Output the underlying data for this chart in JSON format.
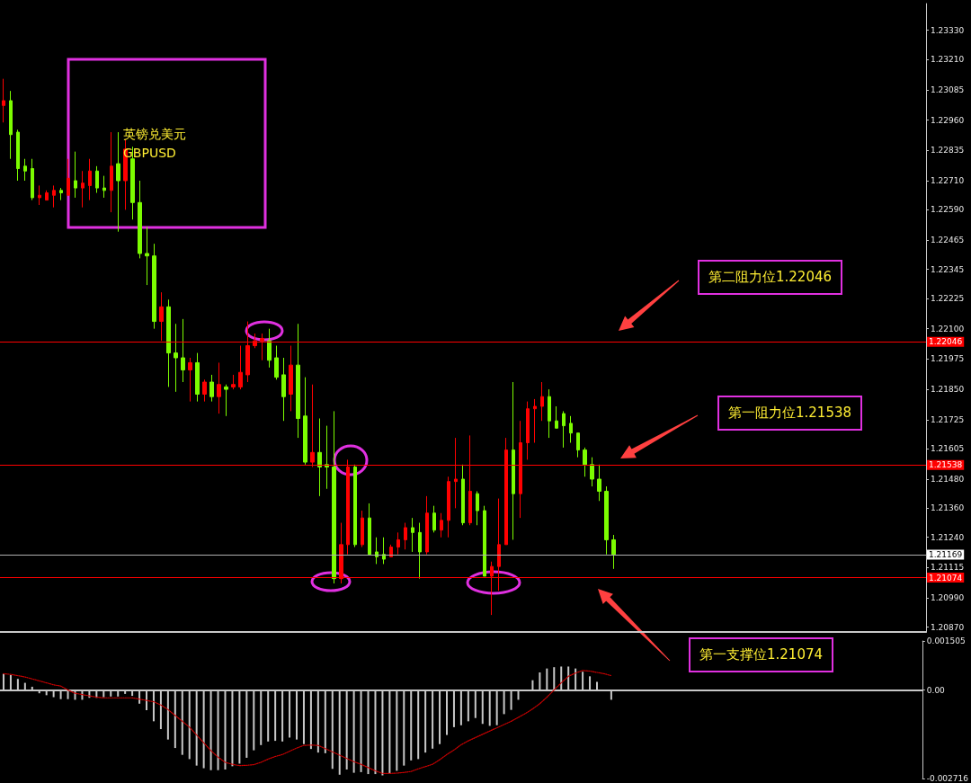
{
  "chart_data": [
    {
      "type": "candlestick",
      "title": "英镑兑美元",
      "subtitle": "GBPUSD",
      "categories": [
        null,
        null,
        null,
        null,
        null,
        null,
        null,
        null,
        null,
        null,
        null,
        null,
        null,
        null,
        null,
        null,
        null,
        null,
        null,
        null,
        null,
        null,
        null,
        null,
        null,
        null,
        null,
        null,
        null,
        null,
        null,
        null,
        null,
        null,
        null,
        null,
        null,
        null,
        null,
        null,
        null,
        null,
        null,
        null,
        null,
        null,
        null,
        null,
        null,
        null,
        null,
        null,
        null,
        null,
        null,
        null,
        null,
        null,
        null,
        null,
        null,
        null,
        null,
        null,
        null,
        null,
        null,
        null,
        null,
        null,
        null,
        null,
        null,
        null,
        null,
        null,
        null,
        null,
        null,
        null,
        null,
        null,
        null,
        null,
        null,
        null,
        null,
        null,
        null,
        null,
        null,
        null,
        null,
        null,
        null,
        null,
        null,
        null,
        null,
        null,
        null,
        null,
        null,
        null,
        null,
        null,
        null,
        null,
        null,
        null,
        null,
        null,
        null,
        null,
        null,
        null,
        null,
        null,
        null,
        null,
        null,
        null,
        null,
        null,
        null,
        null,
        null,
        null,
        null
      ],
      "ohlc": [
        [
          1.2302,
          1.2313,
          1.2295,
          1.2304
        ],
        [
          1.2304,
          1.2308,
          1.228,
          1.229
        ],
        [
          1.2291,
          1.2292,
          1.2271,
          1.2276
        ],
        [
          1.2277,
          1.228,
          1.2271,
          1.2275
        ],
        [
          1.2276,
          1.228,
          1.2263,
          1.2264
        ],
        [
          1.2264,
          1.2269,
          1.2261,
          1.2265
        ],
        [
          1.2263,
          1.2267,
          1.2263,
          1.2266
        ],
        [
          1.2265,
          1.2269,
          1.226,
          1.2267
        ],
        [
          1.2267,
          1.2268,
          1.2263,
          1.2266
        ],
        [
          1.2265,
          1.228,
          1.2265,
          1.2272
        ],
        [
          1.2271,
          1.2283,
          1.2264,
          1.2268
        ],
        [
          1.2268,
          1.2275,
          1.226,
          1.227
        ],
        [
          1.2269,
          1.228,
          1.2263,
          1.2275
        ],
        [
          1.2275,
          1.2277,
          1.2266,
          1.2268
        ],
        [
          1.2268,
          1.2273,
          1.2264,
          1.2267
        ],
        [
          1.2267,
          1.2291,
          1.2258,
          1.2277
        ],
        [
          1.2278,
          1.2291,
          1.225,
          1.2271
        ],
        [
          1.2271,
          1.2288,
          1.2259,
          1.2284
        ],
        [
          1.228,
          1.2285,
          1.2255,
          1.2262
        ],
        [
          1.2262,
          1.2271,
          1.2239,
          1.2241
        ],
        [
          1.2241,
          1.2252,
          1.2228,
          1.224
        ],
        [
          1.224,
          1.2245,
          1.221,
          1.2213
        ],
        [
          1.2213,
          1.2225,
          1.2205,
          1.2219
        ],
        [
          1.2219,
          1.2222,
          1.2186,
          1.22
        ],
        [
          1.22,
          1.2212,
          1.2184,
          1.2198
        ],
        [
          1.2198,
          1.2214,
          1.2188,
          1.2193
        ],
        [
          1.2193,
          1.2198,
          1.218,
          1.2196
        ],
        [
          1.2196,
          1.22,
          1.218,
          1.2183
        ],
        [
          1.2183,
          1.2189,
          1.218,
          1.2188
        ],
        [
          1.2188,
          1.2191,
          1.218,
          1.2182
        ],
        [
          1.2182,
          1.2196,
          1.2175,
          1.2187
        ],
        [
          1.2186,
          1.2187,
          1.2174,
          1.2185
        ],
        [
          1.2186,
          1.2191,
          1.2185,
          1.2187
        ],
        [
          1.2186,
          1.2203,
          1.2185,
          1.2192
        ],
        [
          1.2191,
          1.2213,
          1.2188,
          1.2203
        ],
        [
          1.2203,
          1.2208,
          1.2202,
          1.2205
        ],
        [
          1.2205,
          1.2208,
          1.2197,
          1.2206
        ],
        [
          1.2205,
          1.221,
          1.2194,
          1.2197
        ],
        [
          1.2198,
          1.2203,
          1.2189,
          1.219
        ],
        [
          1.2191,
          1.2198,
          1.2172,
          1.2182
        ],
        [
          1.2183,
          1.2203,
          1.2176,
          1.2195
        ],
        [
          1.2195,
          1.2212,
          1.2165,
          1.2173
        ],
        [
          1.2174,
          1.219,
          1.2154,
          1.2155
        ],
        [
          1.2155,
          1.2187,
          1.2153,
          1.2159
        ],
        [
          1.2159,
          1.2173,
          1.2141,
          1.2153
        ],
        [
          1.2154,
          1.217,
          1.2144,
          1.2153
        ],
        [
          1.2153,
          1.2176,
          1.2105,
          1.2107
        ],
        [
          1.2107,
          1.213,
          1.2105,
          1.2121
        ],
        [
          1.2121,
          1.2156,
          1.2117,
          1.2153
        ],
        [
          1.2153,
          1.2154,
          1.212,
          1.2121
        ],
        [
          1.2121,
          1.2135,
          1.212,
          1.2132
        ],
        [
          1.2132,
          1.2138,
          1.2117,
          1.2117
        ],
        [
          1.2118,
          1.2124,
          1.2113,
          1.2116
        ],
        [
          1.2117,
          1.2124,
          1.2113,
          1.2115
        ],
        [
          1.2116,
          1.2121,
          1.2116,
          1.212
        ],
        [
          1.212,
          1.2126,
          1.2117,
          1.2123
        ],
        [
          1.2123,
          1.213,
          1.2119,
          1.2128
        ],
        [
          1.2128,
          1.2132,
          1.2118,
          1.2126
        ],
        [
          1.2126,
          1.213,
          1.2107,
          1.2118
        ],
        [
          1.2118,
          1.2141,
          1.2117,
          1.2134
        ],
        [
          1.2134,
          1.2137,
          1.2126,
          1.2127
        ],
        [
          1.2127,
          1.2134,
          1.2124,
          1.2131
        ],
        [
          1.2131,
          1.2149,
          1.2124,
          1.2147
        ],
        [
          1.2147,
          1.2165,
          1.2136,
          1.2148
        ],
        [
          1.2148,
          1.2154,
          1.2129,
          1.213
        ],
        [
          1.213,
          1.2166,
          1.2129,
          1.2143
        ],
        [
          1.2142,
          1.2143,
          1.2129,
          1.2135
        ],
        [
          1.2135,
          1.2137,
          1.2108,
          1.2108
        ],
        [
          1.2108,
          1.2114,
          1.2092,
          1.2112
        ],
        [
          1.2112,
          1.214,
          1.2102,
          1.2121
        ],
        [
          1.2121,
          1.2165,
          1.2121,
          1.216
        ],
        [
          1.216,
          1.2188,
          1.2123,
          1.2142
        ],
        [
          1.2142,
          1.2172,
          1.2132,
          1.2163
        ],
        [
          1.2163,
          1.218,
          1.2156,
          1.2177
        ],
        [
          1.2177,
          1.2181,
          1.2163,
          1.2178
        ],
        [
          1.2178,
          1.2188,
          1.2172,
          1.2182
        ],
        [
          1.2182,
          1.2185,
          1.2165,
          1.2172
        ],
        [
          1.2172,
          1.2178,
          1.2169,
          1.2169
        ],
        [
          1.2175,
          1.2176,
          1.2161,
          1.217
        ],
        [
          1.2171,
          1.2174,
          1.2163,
          1.2167
        ],
        [
          1.2167,
          1.2167,
          1.2157,
          1.216
        ],
        [
          1.216,
          1.2161,
          1.2149,
          1.2154
        ],
        [
          1.2154,
          1.2157,
          1.2145,
          1.2148
        ],
        [
          1.2148,
          1.2154,
          1.2139,
          1.2143
        ],
        [
          1.2143,
          1.2145,
          1.2117,
          1.2123
        ],
        [
          1.2123,
          1.2125,
          1.2111,
          1.2117
        ],
        null,
        null,
        null,
        null,
        null,
        null,
        null,
        null,
        null,
        null,
        null,
        null,
        null,
        null,
        null,
        null,
        null,
        null,
        null,
        null,
        null,
        null,
        null,
        null,
        null,
        null,
        null,
        null,
        null,
        null,
        null,
        null,
        null,
        null,
        null,
        null,
        null,
        null,
        null,
        null,
        null,
        null,
        null
      ],
      "ylim": [
        1.2085,
        1.2344
      ],
      "yticks": [
        {
          "value": 1.2333,
          "label": "1.23330"
        },
        {
          "value": 1.2321,
          "label": "1.23210"
        },
        {
          "value": 1.23085,
          "label": "1.23085"
        },
        {
          "value": 1.2296,
          "label": "1.22960"
        },
        {
          "value": 1.22835,
          "label": "1.22835"
        },
        {
          "value": 1.2271,
          "label": "1.22710"
        },
        {
          "value": 1.2259,
          "label": "1.22590"
        },
        {
          "value": 1.22465,
          "label": "1.22465"
        },
        {
          "value": 1.22345,
          "label": "1.22345"
        },
        {
          "value": 1.22225,
          "label": "1.22225"
        },
        {
          "value": 1.221,
          "label": "1.22100"
        },
        {
          "value": 1.21975,
          "label": "1.21975"
        },
        {
          "value": 1.2185,
          "label": "1.21850"
        },
        {
          "value": 1.21725,
          "label": "1.21725"
        },
        {
          "value": 1.21605,
          "label": "1.21605"
        },
        {
          "value": 1.2148,
          "label": "1.21480"
        },
        {
          "value": 1.2136,
          "label": "1.21360"
        },
        {
          "value": 1.2124,
          "label": "1.21240"
        },
        {
          "value": 1.21115,
          "label": "1.21115"
        },
        {
          "value": 1.2099,
          "label": "1.20990"
        },
        {
          "value": 1.2087,
          "label": "1.20870"
        }
      ],
      "ref_lines": [
        {
          "axis": "y",
          "value": 1.22046,
          "label": "1.22046",
          "color": "#ff0000"
        },
        {
          "axis": "y",
          "value": 1.21538,
          "label": "1.21538",
          "color": "#ff0000"
        },
        {
          "axis": "y",
          "value": 1.21169,
          "label": "1.21169",
          "color": "#b0b0b0"
        },
        {
          "axis": "y",
          "value": 1.21074,
          "label": "1.21074",
          "color": "#ff0000"
        }
      ],
      "annotations": [
        "第二阻力位1.22046",
        "第一阻力位1.21538",
        "第一支撑位1.21074"
      ],
      "tick_labels": "y"
    },
    {
      "type": "bar",
      "categories": [
        null,
        null,
        null,
        null,
        null,
        null,
        null,
        null,
        null,
        null,
        null,
        null,
        null,
        null,
        null,
        null,
        null,
        null,
        null,
        null,
        null,
        null,
        null,
        null,
        null,
        null,
        null,
        null,
        null,
        null,
        null,
        null,
        null,
        null,
        null,
        null,
        null,
        null,
        null,
        null,
        null,
        null,
        null,
        null,
        null,
        null,
        null,
        null,
        null,
        null,
        null,
        null,
        null,
        null,
        null,
        null,
        null,
        null,
        null,
        null,
        null,
        null,
        null,
        null,
        null,
        null,
        null,
        null,
        null,
        null,
        null,
        null,
        null,
        null,
        null,
        null,
        null,
        null,
        null,
        null,
        null,
        null,
        null,
        null,
        null,
        null,
        null,
        null,
        null,
        null,
        null,
        null,
        null,
        null,
        null,
        null,
        null,
        null,
        null,
        null,
        null,
        null,
        null,
        null,
        null,
        null,
        null,
        null,
        null,
        null,
        null,
        null,
        null,
        null,
        null,
        null,
        null,
        null,
        null,
        null,
        null,
        null,
        null,
        null,
        null,
        null,
        null,
        null,
        null
      ],
      "series": [
        {
          "color": "#c8c8c8",
          "values": [
            0.0005,
            0.00046,
            0.00034,
            0.00022,
            0.0001,
            -0.0001,
            -0.00016,
            -0.00022,
            -0.00028,
            -0.00028,
            -0.0003,
            -0.0003,
            -0.00024,
            -0.00024,
            -0.00022,
            -0.0002,
            -0.0002,
            -0.00012,
            -0.00018,
            -0.00042,
            -0.00062,
            -0.00096,
            -0.0012,
            -0.00152,
            -0.00178,
            -0.00199,
            -0.00212,
            -0.00232,
            -0.0024,
            -0.00246,
            -0.00246,
            -0.00244,
            -0.00234,
            -0.00226,
            -0.00208,
            -0.00185,
            -0.00169,
            -0.00158,
            -0.00156,
            -0.00158,
            -0.00146,
            -0.00152,
            -0.00166,
            -0.00181,
            -0.00192,
            -0.00194,
            -0.00242,
            -0.0026,
            -0.00244,
            -0.00254,
            -0.00252,
            -0.00258,
            -0.00258,
            -0.00262,
            -0.00256,
            -0.00248,
            -0.00232,
            -0.00216,
            -0.00212,
            -0.00192,
            -0.0018,
            -0.00166,
            -0.00138,
            -0.00114,
            -0.00108,
            -0.00096,
            -0.00086,
            -0.00104,
            -0.0011,
            -0.00108,
            -0.00074,
            -0.00061,
            -0.0003,
            0,
            0.0003,
            0.00054,
            0.00066,
            0.0007,
            0.00072,
            0.00072,
            0.00066,
            0.00056,
            0.00042,
            0.00025,
            0,
            -0.0003,
            null,
            null,
            null,
            null,
            null,
            null,
            null,
            null,
            null,
            null,
            null,
            null,
            null,
            null,
            null,
            null,
            null,
            null,
            null,
            null,
            null,
            null,
            null,
            null,
            null,
            null,
            null,
            null,
            null,
            null,
            null,
            null,
            null,
            null,
            null,
            null,
            null,
            null,
            null,
            null,
            null,
            null,
            null
          ]
        },
        {
          "type": "line",
          "color": "#cc0000",
          "line_style": "dotted",
          "values": [
            0.0005,
            0.00048,
            0.00044,
            0.0004,
            0.00034,
            0.00028,
            0.00022,
            0.00016,
            0.00012,
            0,
            -0.0001,
            -0.00014,
            -0.00018,
            -0.00022,
            -0.00024,
            -0.00024,
            -0.00024,
            -0.00024,
            -0.00024,
            -0.00028,
            -0.00032,
            -0.00036,
            -0.00046,
            -0.0006,
            -0.00078,
            -0.00096,
            -0.00114,
            -0.00138,
            -0.00162,
            -0.00186,
            -0.00206,
            -0.00222,
            -0.00228,
            -0.00232,
            -0.00231,
            -0.00229,
            -0.00222,
            -0.00212,
            -0.00204,
            -0.00198,
            -0.00188,
            -0.00178,
            -0.0017,
            -0.00169,
            -0.0017,
            -0.0018,
            -0.0019,
            -0.002,
            -0.0021,
            -0.0022,
            -0.00228,
            -0.00238,
            -0.00248,
            -0.00256,
            -0.00256,
            -0.00255,
            -0.00253,
            -0.0025,
            -0.00242,
            -0.00235,
            -0.00228,
            -0.00214,
            -0.00198,
            -0.00184,
            -0.00168,
            -0.00156,
            -0.00146,
            -0.00136,
            -0.00126,
            -0.00116,
            -0.00106,
            -0.00096,
            -0.00084,
            -0.00072,
            -0.00058,
            -0.00042,
            -0.00022,
            0,
            0.00022,
            0.00042,
            0.00052,
            0.0006,
            0.00058,
            0.00054,
            0.0005,
            0.00044,
            null,
            null,
            null,
            null,
            null,
            null,
            null,
            null,
            null,
            null,
            null,
            null,
            null,
            null,
            null,
            null,
            null,
            null,
            null,
            null,
            null,
            null,
            null,
            null,
            null,
            null,
            null,
            null,
            null,
            null,
            null,
            null,
            null,
            null,
            null,
            null,
            null,
            null,
            null,
            null,
            null,
            null,
            null
          ]
        }
      ],
      "ylim": [
        -0.002716,
        0.001505
      ],
      "yticks": [
        0.001505,
        {
          "value": 0,
          "label": "0.00"
        },
        -0.002716
      ],
      "tick_labels": "y"
    }
  ]
}
